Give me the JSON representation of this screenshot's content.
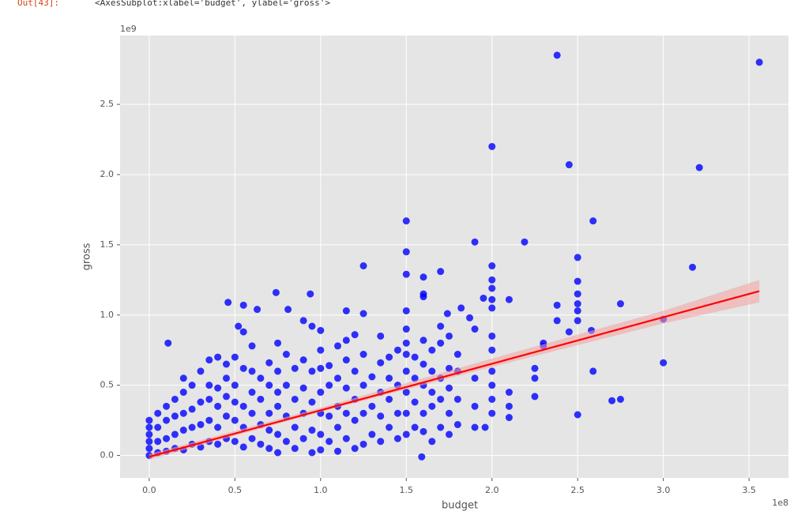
{
  "cell": {
    "prompt": "Out[43]:",
    "text": "<AxesSubplot:xlabel='budget', ylabel='gross'>"
  },
  "chart_data": {
    "type": "scatter",
    "xlabel": "budget",
    "ylabel": "gross",
    "x_offset": "1e8",
    "y_offset": "1e9",
    "color": "#0000ff",
    "grid": true,
    "xlim": [
      -0.17,
      3.73
    ],
    "ylim": [
      -0.16,
      2.99
    ],
    "xticks": [
      {
        "value": 0,
        "label": "0.0"
      },
      0.5,
      {
        "value": 1,
        "label": "1.0"
      },
      1.5,
      {
        "value": 2,
        "label": "2.0"
      },
      2.5,
      {
        "value": 3,
        "label": "3.0"
      },
      3.5
    ],
    "yticks": [
      {
        "value": 0,
        "label": "0.0"
      },
      0.5,
      {
        "value": 1,
        "label": "1.0"
      },
      1.5,
      {
        "value": 2,
        "label": "2.0"
      },
      2.5
    ],
    "x": [
      2.38,
      3.56,
      2.0,
      2.45,
      3.21,
      2.59,
      1.5,
      2.19,
      1.9,
      1.5,
      2.5,
      2.0,
      1.25,
      3.17,
      1.5,
      1.6,
      1.7,
      2.5,
      2.0,
      2.0,
      2.5,
      0.74,
      0.94,
      1.6,
      1.6,
      2.1,
      1.95,
      0.46,
      0.55,
      0.63,
      0.81,
      1.15,
      1.25,
      1.5,
      2.0,
      2.0,
      2.5,
      2.75,
      2.38,
      1.82,
      1.87,
      1.74,
      2.5,
      2.5,
      2.38,
      3.0,
      3.0,
      2.59,
      0.11,
      0.52,
      1.0,
      2.58,
      2.45,
      2.7,
      2.75,
      2.5,
      2.25,
      1.59,
      2.1,
      1.96,
      0,
      0,
      0,
      0,
      0,
      0,
      0.05,
      0.05,
      0.05,
      0.05,
      0.1,
      0.1,
      0.1,
      0.1,
      0.15,
      0.15,
      0.15,
      0.15,
      0.2,
      0.2,
      0.2,
      0.2,
      0.2,
      0.25,
      0.25,
      0.25,
      0.25,
      0.3,
      0.3,
      0.3,
      0.3,
      0.35,
      0.35,
      0.35,
      0.35,
      0.35,
      0.4,
      0.4,
      0.4,
      0.4,
      0.4,
      0.45,
      0.45,
      0.45,
      0.45,
      0.45,
      0.5,
      0.5,
      0.5,
      0.5,
      0.5,
      0.55,
      0.55,
      0.55,
      0.55,
      0.55,
      0.6,
      0.6,
      0.6,
      0.6,
      0.6,
      0.65,
      0.65,
      0.65,
      0.65,
      0.7,
      0.7,
      0.7,
      0.7,
      0.7,
      0.75,
      0.75,
      0.75,
      0.75,
      0.75,
      0.75,
      0.8,
      0.8,
      0.8,
      0.8,
      0.85,
      0.85,
      0.85,
      0.85,
      0.9,
      0.9,
      0.9,
      0.9,
      0.9,
      0.95,
      0.95,
      0.95,
      0.95,
      0.95,
      1.0,
      1.0,
      1.0,
      1.0,
      1.0,
      1.0,
      1.05,
      1.05,
      1.05,
      1.05,
      1.1,
      1.1,
      1.1,
      1.1,
      1.1,
      1.15,
      1.15,
      1.15,
      1.15,
      1.15,
      1.2,
      1.2,
      1.2,
      1.2,
      1.2,
      1.25,
      1.25,
      1.25,
      1.25,
      1.3,
      1.3,
      1.3,
      1.35,
      1.35,
      1.35,
      1.35,
      1.35,
      1.4,
      1.4,
      1.4,
      1.4,
      1.45,
      1.45,
      1.45,
      1.45,
      1.5,
      1.5,
      1.5,
      1.5,
      1.5,
      1.5,
      1.5,
      1.55,
      1.55,
      1.55,
      1.55,
      1.6,
      1.6,
      1.6,
      1.6,
      1.6,
      1.65,
      1.65,
      1.65,
      1.65,
      1.65,
      1.7,
      1.7,
      1.7,
      1.7,
      1.7,
      1.75,
      1.75,
      1.75,
      1.75,
      1.75,
      1.8,
      1.8,
      1.8,
      1.8,
      1.9,
      1.9,
      1.9,
      1.9,
      2.0,
      2.0,
      2.0,
      2.0,
      2.0,
      2.0,
      2.1,
      2.1,
      2.25,
      2.25,
      2.3,
      2.3
    ],
    "values": [
      2.85,
      2.8,
      2.2,
      2.07,
      2.05,
      1.67,
      1.67,
      1.52,
      1.52,
      1.45,
      1.41,
      1.35,
      1.35,
      1.34,
      1.29,
      1.27,
      1.31,
      1.24,
      1.25,
      1.19,
      1.15,
      1.16,
      1.15,
      1.15,
      1.13,
      1.11,
      1.12,
      1.09,
      1.07,
      1.04,
      1.04,
      1.03,
      1.01,
      1.03,
      1.11,
      1.05,
      1.08,
      1.08,
      1.07,
      1.05,
      0.98,
      1.01,
      1.03,
      0.96,
      0.96,
      0.97,
      0.66,
      0.6,
      0.8,
      0.92,
      0.89,
      0.89,
      0.88,
      0.39,
      0.4,
      0.29,
      0.42,
      -0.01,
      0.27,
      0.2,
      0.0,
      0.05,
      0.1,
      0.15,
      0.2,
      0.25,
      0.02,
      0.1,
      0.2,
      0.3,
      0.03,
      0.12,
      0.25,
      0.35,
      0.05,
      0.15,
      0.28,
      0.4,
      0.04,
      0.18,
      0.3,
      0.45,
      0.55,
      0.08,
      0.2,
      0.33,
      0.5,
      0.06,
      0.22,
      0.38,
      0.6,
      0.1,
      0.25,
      0.4,
      0.5,
      0.68,
      0.08,
      0.2,
      0.35,
      0.48,
      0.7,
      0.12,
      0.28,
      0.42,
      0.55,
      0.65,
      0.1,
      0.25,
      0.38,
      0.5,
      0.7,
      0.06,
      0.2,
      0.35,
      0.62,
      0.88,
      0.12,
      0.3,
      0.45,
      0.6,
      0.78,
      0.08,
      0.22,
      0.4,
      0.55,
      0.05,
      0.18,
      0.3,
      0.5,
      0.66,
      0.02,
      0.15,
      0.35,
      0.45,
      0.6,
      0.8,
      0.1,
      0.28,
      0.5,
      0.72,
      0.05,
      0.2,
      0.4,
      0.62,
      0.12,
      0.3,
      0.48,
      0.68,
      0.96,
      0.02,
      0.18,
      0.38,
      0.6,
      0.92,
      0.04,
      0.15,
      0.3,
      0.45,
      0.62,
      0.75,
      0.1,
      0.28,
      0.5,
      0.64,
      0.03,
      0.2,
      0.35,
      0.55,
      0.78,
      0.12,
      0.3,
      0.48,
      0.68,
      0.82,
      0.05,
      0.25,
      0.4,
      0.6,
      0.86,
      0.08,
      0.3,
      0.5,
      0.72,
      0.15,
      0.35,
      0.56,
      0.1,
      0.28,
      0.45,
      0.66,
      0.85,
      0.2,
      0.4,
      0.55,
      0.7,
      0.12,
      0.3,
      0.5,
      0.75,
      0.15,
      0.3,
      0.45,
      0.6,
      0.72,
      0.8,
      0.9,
      0.2,
      0.38,
      0.55,
      0.7,
      0.17,
      0.3,
      0.5,
      0.65,
      0.82,
      0.1,
      0.35,
      0.45,
      0.6,
      0.75,
      0.2,
      0.4,
      0.55,
      0.8,
      0.92,
      0.15,
      0.3,
      0.48,
      0.62,
      0.85,
      0.22,
      0.4,
      0.6,
      0.72,
      0.2,
      0.35,
      0.55,
      0.9,
      0.3,
      0.4,
      0.5,
      0.6,
      0.75,
      0.85,
      0.35,
      0.45,
      0.55,
      0.62,
      0.78,
      0.8
    ],
    "regression": {
      "x": [
        0,
        3.56
      ],
      "values": [
        -0.01,
        1.17
      ],
      "color": "#ff0000"
    },
    "ci": {
      "x": [
        0,
        1.0,
        2.0,
        3.0,
        3.56
      ],
      "lower": [
        -0.03,
        0.31,
        0.63,
        0.94,
        1.09
      ],
      "upper": [
        0.01,
        0.34,
        0.69,
        1.03,
        1.25
      ],
      "color": "#f4a0a0"
    }
  }
}
